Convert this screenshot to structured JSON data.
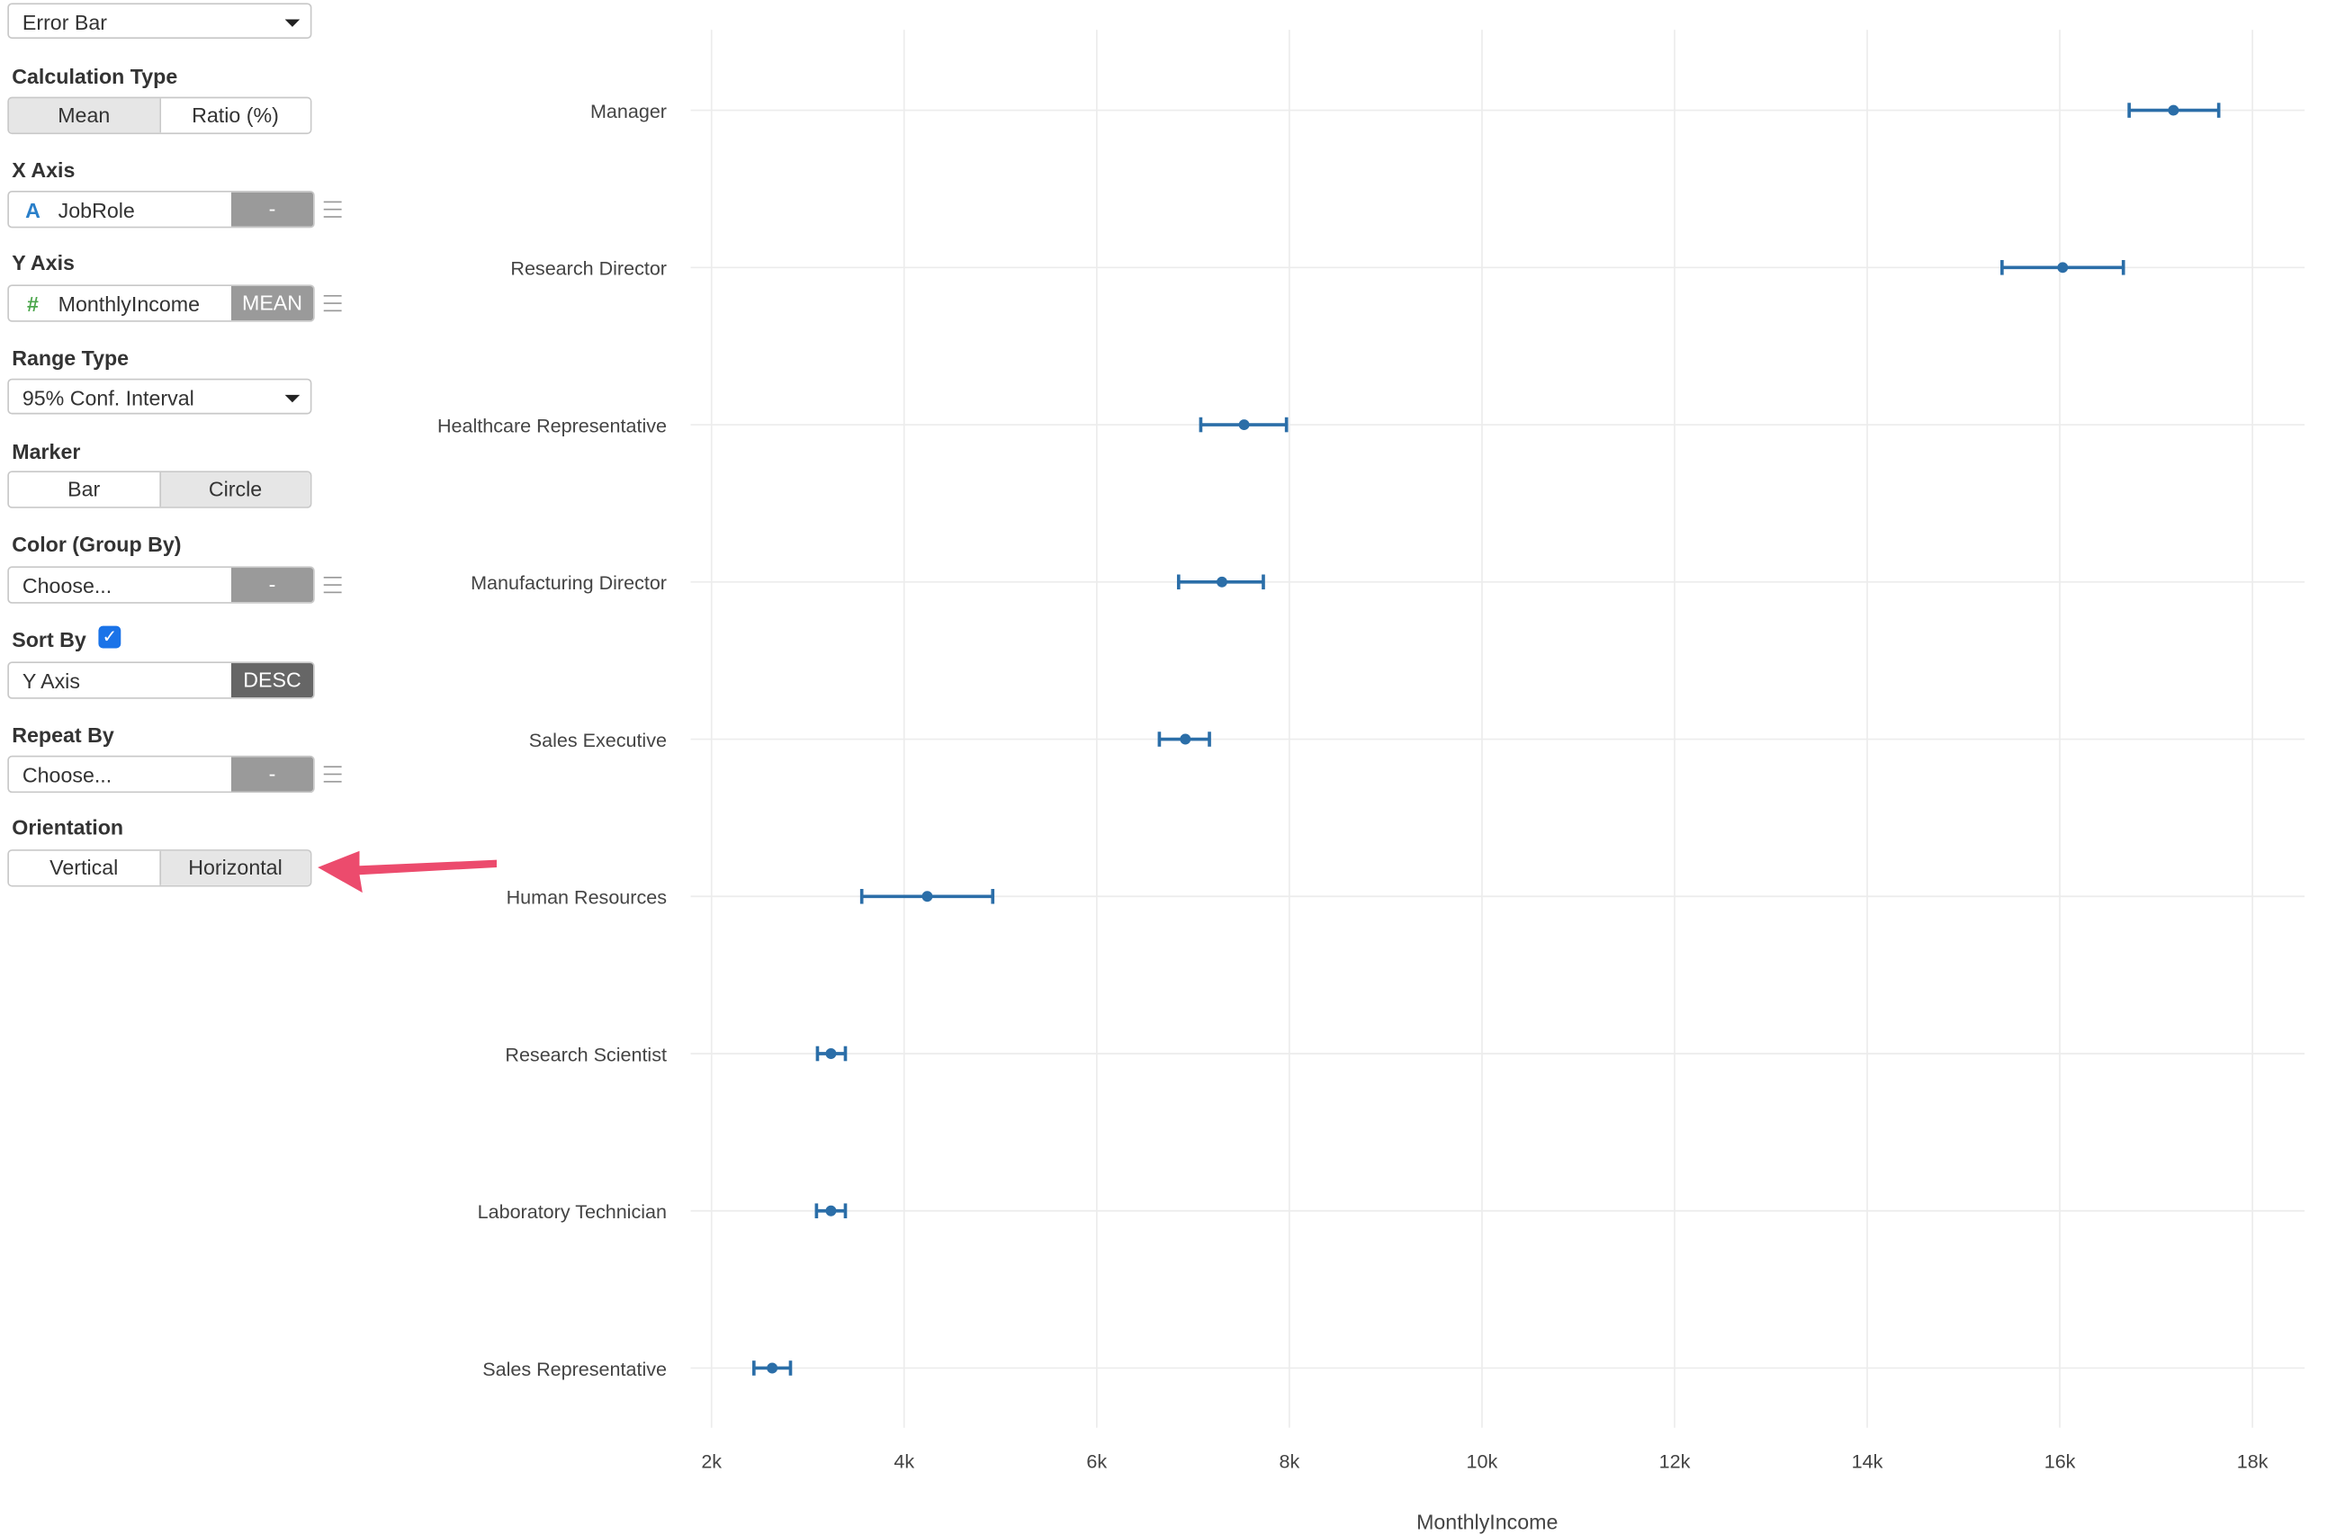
{
  "controls": {
    "chart_type": "Error Bar",
    "calc_type": {
      "label": "Calculation Type",
      "options": [
        "Mean",
        "Ratio (%)"
      ],
      "selected": "Mean"
    },
    "x_axis": {
      "label": "X Axis",
      "icon": "A",
      "field": "JobRole",
      "tag": "-"
    },
    "y_axis": {
      "label": "Y Axis",
      "icon": "#",
      "field": "MonthlyIncome",
      "tag": "MEAN"
    },
    "range_type": {
      "label": "Range Type",
      "value": "95% Conf. Interval"
    },
    "marker": {
      "label": "Marker",
      "options": [
        "Bar",
        "Circle"
      ],
      "selected": "Circle"
    },
    "color_group": {
      "label": "Color (Group By)",
      "value": "Choose...",
      "tag": "-"
    },
    "sort_by": {
      "label": "Sort By",
      "checked": true,
      "value": "Y Axis",
      "tag": "DESC"
    },
    "repeat_by": {
      "label": "Repeat By",
      "value": "Choose...",
      "tag": "-"
    },
    "orientation": {
      "label": "Orientation",
      "options": [
        "Vertical",
        "Horizontal"
      ],
      "selected": "Horizontal"
    }
  },
  "colors": {
    "series": "#2b6ea8",
    "grid": "#ececec",
    "arrow": "#ec4b6d"
  },
  "chart_data": {
    "type": "scatter",
    "orientation": "horizontal",
    "marker": "circle",
    "xlabel": "MonthlyIncome",
    "xlim": [
      1800,
      18500
    ],
    "xticks": [
      2000,
      4000,
      6000,
      8000,
      10000,
      12000,
      14000,
      16000,
      18000
    ],
    "xtick_labels": [
      "2k",
      "4k",
      "6k",
      "8k",
      "10k",
      "12k",
      "14k",
      "16k",
      "18k"
    ],
    "grid": true,
    "categories": [
      "Manager",
      "Research Director",
      "Healthcare Representative",
      "Manufacturing Director",
      "Sales Executive",
      "Human Resources",
      "Research Scientist",
      "Laboratory Technician",
      "Sales Representative"
    ],
    "mean": [
      17180,
      16030,
      7530,
      7300,
      6920,
      4240,
      3240,
      3240,
      2630
    ],
    "lower": [
      16720,
      15400,
      7080,
      6850,
      6650,
      3560,
      3100,
      3090,
      2440
    ],
    "upper": [
      17650,
      16660,
      7970,
      7730,
      7170,
      4920,
      3390,
      3390,
      2820
    ]
  }
}
